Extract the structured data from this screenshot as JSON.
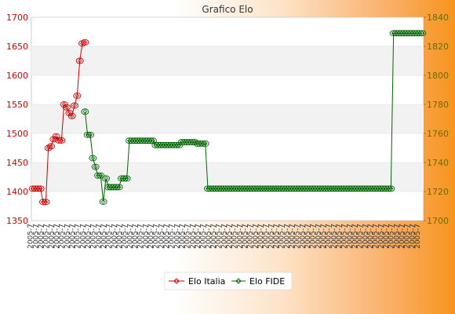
{
  "chart_data": {
    "type": "line",
    "title": "Grafico Elo",
    "left_axis": {
      "ylim": [
        1350,
        1700
      ],
      "ticks": [
        1350,
        1400,
        1450,
        1500,
        1550,
        1600,
        1650,
        1700
      ],
      "color": "#cc0000"
    },
    "right_axis": {
      "ylim": [
        1700,
        1840
      ],
      "ticks": [
        1700,
        1720,
        1740,
        1760,
        1780,
        1800,
        1820,
        1840
      ],
      "color": "#6b6b00"
    },
    "grid": true,
    "legend_placement": "bottom-center",
    "num_points": 150,
    "series": [
      {
        "name": "Elo Italia",
        "axis": "left",
        "color": "#cc0000",
        "values": [
          1405,
          1405,
          1405,
          1405,
          1382,
          1382,
          1475,
          1478,
          1490,
          1495,
          1488,
          1488,
          1550,
          1545,
          1535,
          1530,
          1548,
          1565,
          1625,
          1655,
          1657
        ]
      },
      {
        "name": "Elo FIDE",
        "axis": "right",
        "color": "#006600",
        "segments": [
          {
            "start": 20,
            "values": [
              1775,
              1759,
              1759,
              1743,
              1737,
              1731,
              1731,
              1713,
              1729,
              1723,
              1723,
              1723,
              1723,
              1723,
              1729,
              1729,
              1729,
              1755,
              1755,
              1755,
              1755,
              1755,
              1755,
              1755,
              1755,
              1755,
              1755,
              1752,
              1752,
              1752,
              1752,
              1752,
              1752,
              1752,
              1752,
              1752,
              1752,
              1754,
              1754,
              1754,
              1754,
              1754,
              1754,
              1753,
              1753,
              1753,
              1753
            ]
          },
          {
            "start": 67,
            "repeat": 71,
            "value": 1722
          },
          {
            "start": 138,
            "repeat": 12,
            "value": 1829
          }
        ]
      }
    ]
  }
}
